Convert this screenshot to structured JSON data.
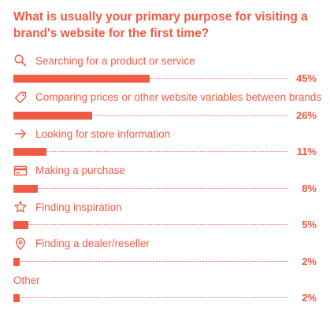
{
  "chart_data": {
    "type": "bar",
    "orientation": "horizontal",
    "title": "What is usually your primary purpose for visiting a brand's website for the first time?",
    "categories": [
      "Searching for a product or service",
      "Comparing prices or other website variables between brands",
      "Looking for store information",
      "Making a purchase",
      "Finding inspiration",
      "Finding a dealer/reseller",
      "Other"
    ],
    "values": [
      45,
      26,
      11,
      8,
      5,
      2,
      2
    ],
    "value_labels": [
      "45%",
      "26%",
      "11%",
      "8%",
      "5%",
      "2%",
      "2%"
    ],
    "icons": [
      "search-icon",
      "tag-icon",
      "arrow-right-icon",
      "credit-card-icon",
      "star-icon",
      "location-pin-icon",
      ""
    ],
    "xlim": [
      0,
      100
    ],
    "bar_color": "#ef5b45",
    "grid": false,
    "legend": "none"
  }
}
